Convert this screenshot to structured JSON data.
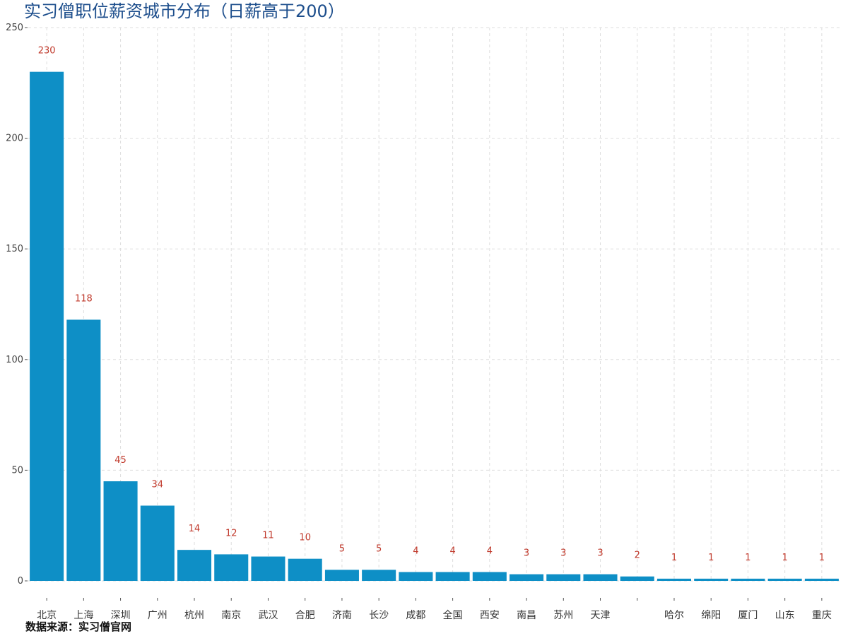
{
  "chart_data": {
    "type": "bar",
    "title": "实习僧职位薪资城市分布（日薪高于200）",
    "xlabel": "",
    "ylabel": "",
    "categories": [
      "北京",
      "上海",
      "深圳",
      "广州",
      "杭州",
      "南京",
      "武汉",
      "合肥",
      "济南",
      "长沙",
      "成都",
      "全国",
      "西安",
      "南昌",
      "苏州",
      "天津",
      "",
      "哈尔",
      "绵阳",
      "厦门",
      "山东",
      "重庆"
    ],
    "values": [
      230,
      118,
      45,
      34,
      14,
      12,
      11,
      10,
      5,
      5,
      4,
      4,
      4,
      3,
      3,
      3,
      2,
      1,
      1,
      1,
      1,
      1
    ],
    "data_labels": [
      "230",
      "118",
      "45",
      "34",
      "14",
      "12",
      "11",
      "10",
      "5",
      "5",
      "4",
      "4",
      "4",
      "3",
      "3",
      "3",
      "2",
      "1",
      "1",
      "1",
      "1",
      "1"
    ],
    "yticks": [
      0,
      50,
      100,
      150,
      200,
      250
    ],
    "ytick_labels": [
      "0",
      "50",
      "100",
      "150",
      "200",
      "250"
    ],
    "ylim": [
      0,
      250
    ],
    "grid": true,
    "legend": "none"
  },
  "caption": "数据来源：实习僧官网",
  "colors": {
    "bar": "#0e8fc6",
    "title": "#1d4e8c",
    "data_label": "#c0392b",
    "grid": "#dddddd"
  }
}
